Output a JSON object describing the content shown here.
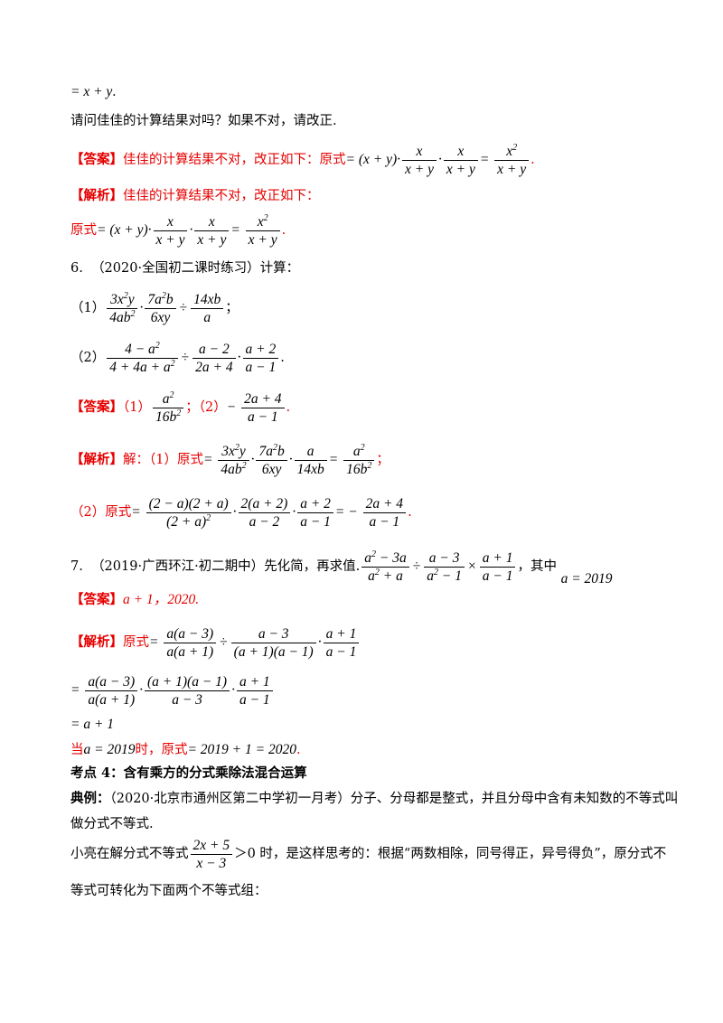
{
  "q5": {
    "line_top": "= x + y",
    "question": "请问佳佳的计算结果对吗？如果不对，请改正.",
    "answer_tag": "【答案】",
    "answer_text": "佳佳的计算结果不对，改正如下：原式",
    "analysis_tag": "【解析】",
    "analysis_text": "佳佳的计算结果不对，改正如下：",
    "orig": "原式"
  },
  "q6": {
    "number": "6.",
    "source": "（2020·全国初二课时练习）计算：",
    "p1": "（1）",
    "p2": "（2）",
    "answer_tag": "【答案】",
    "a1": "（1）",
    "a2": "；（2）",
    "analysis_tag": "【解析】",
    "analysis_jie": "解：（1）原式",
    "analysis_p2": "（2）原式"
  },
  "q7": {
    "number": "7.",
    "source": "（2019·广西环江·初二期中）先化简，再求值.",
    "where": "，其中",
    "a_value": "a = 2019",
    "answer_tag": "【答案】",
    "answer_text": "a + 1，2020.",
    "analysis_tag": "【解析】",
    "orig": "原式",
    "step3": "= a + 1",
    "when": "当",
    "when_a": "a = 2019",
    "when_mid": "时，原式",
    "when_val": "= 2019 + 1 = 2020"
  },
  "kp4": {
    "heading": "考点 4：含有乘方的分式乘除法混合运算",
    "example_tag": "典例：",
    "example_text": "（2020·北京市通州区第二中学初一月考）分子、分母都是整式，并且分母中含有未知数的不等式叫",
    "example_text2": "做分式不等式.",
    "xiaoliang_1": "小亮在解分式不等式",
    "xiaoliang_2": "＞0 时，是这样思考的：根据“两数相除，同号得正，异号得负”，原分式不",
    "xiaoliang_3": "等式可转化为下面两个不等式组："
  }
}
